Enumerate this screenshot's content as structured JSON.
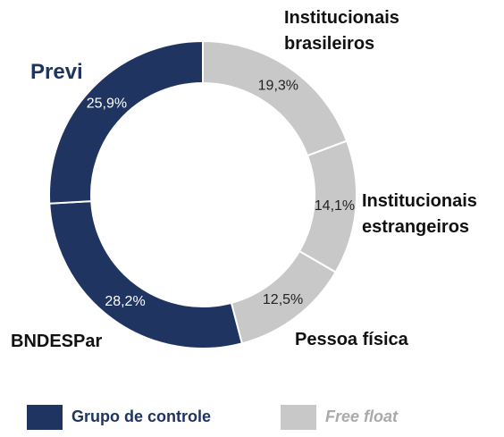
{
  "chart_data": {
    "type": "donut",
    "categories": [
      "Institucionais brasileiros",
      "Institucionais estrangeiros",
      "Pessoa física",
      "BNDESPar",
      "Previ"
    ],
    "values": [
      19.3,
      14.1,
      12.5,
      28.2,
      25.9
    ],
    "value_labels": [
      "19,3%",
      "14,1%",
      "12,5%",
      "28,2%",
      "25,9%"
    ],
    "colors": [
      "#c8c8c8",
      "#c8c8c8",
      "#c8c8c8",
      "#1f3461",
      "#1f3461"
    ],
    "legend": [
      {
        "name": "Grupo de controle",
        "color": "#1f3461"
      },
      {
        "name": "Free float",
        "color": "#c8c8c8"
      }
    ]
  }
}
